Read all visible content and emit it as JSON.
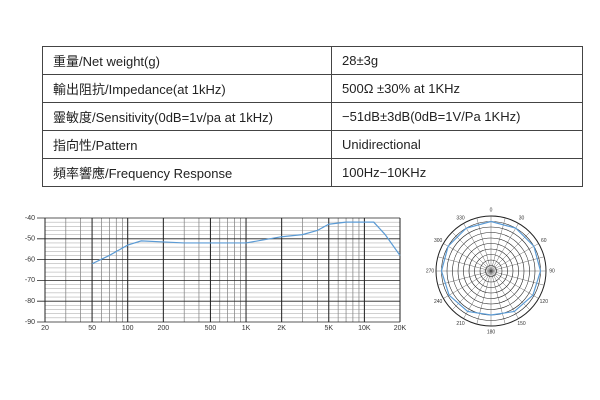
{
  "table": {
    "rows": [
      [
        "重量/Net weight(g)",
        "28±3g"
      ],
      [
        "輸出阻抗/Impedance(at 1kHz)",
        "500Ω ±30% at 1KHz"
      ],
      [
        "靈敏度/Sensitivity(0dB=1v/pa at 1kHz)",
        "−51dB±3dB(0dB=1V/Pa 1KHz)"
      ],
      [
        "指向性/Pattern",
        "Unidirectional"
      ],
      [
        "頻率響應/Frequency Response",
        "100Hz−10KHz"
      ]
    ]
  },
  "chart_data": [
    {
      "type": "line",
      "log_x": true,
      "color": "#5b9bd5",
      "x": [
        50,
        70,
        100,
        130,
        200,
        300,
        500,
        1000,
        2000,
        3000,
        4000,
        5000,
        7000,
        10000,
        12000,
        15000,
        20000
      ],
      "values": [
        -62,
        -58,
        -53,
        -51,
        -51.5,
        -52,
        -52,
        -52,
        -49,
        -48,
        -46,
        -43,
        -42,
        -42,
        -42,
        -48,
        -58
      ],
      "xlim": [
        20,
        20000
      ],
      "xticks": [
        20,
        50,
        100,
        200,
        500,
        {
          "value": 1000,
          "label": "1K"
        },
        {
          "value": 2000,
          "label": "2K"
        },
        {
          "value": 5000,
          "label": "5K"
        },
        {
          "value": 10000,
          "label": "10K"
        },
        {
          "value": 20000,
          "label": "20K"
        }
      ],
      "ylim": [
        -90,
        -40
      ],
      "yticks": [
        -40,
        -50,
        -60,
        -70,
        -80,
        -90
      ]
    },
    {
      "type": "polar",
      "color": "#5b9bd5",
      "theta": [
        0,
        30,
        60,
        90,
        120,
        150,
        180,
        210,
        240,
        270,
        300,
        330
      ],
      "values": [
        0.9,
        0.9,
        0.9,
        0.9,
        0.88,
        0.85,
        0.8,
        0.85,
        0.88,
        0.9,
        0.9,
        0.9
      ],
      "rlim": [
        0,
        1
      ]
    }
  ]
}
